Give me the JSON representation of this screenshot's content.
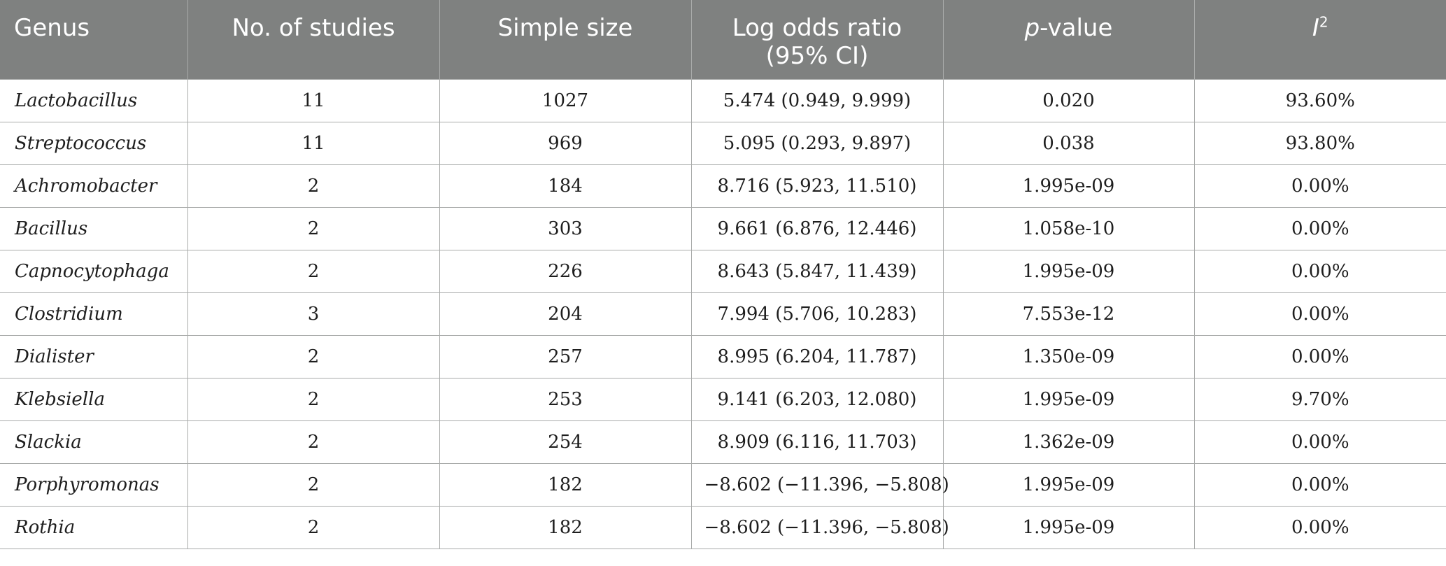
{
  "table": {
    "headers": {
      "genus": "Genus",
      "studies": "No. of studies",
      "sample_size": "Simple size",
      "log_odds_line1": "Log odds ratio",
      "log_odds_line2": "(95% CI)",
      "pvalue_p": "p",
      "pvalue_rest": "-value",
      "i2_base": "I",
      "i2_sup": "2"
    },
    "rows": [
      {
        "genus": "Lactobacillus",
        "studies": "11",
        "sample_size": "1027",
        "log_odds": "5.474 (0.949, 9.999)",
        "p_value": "0.020",
        "i2": "93.60%"
      },
      {
        "genus": "Streptococcus",
        "studies": "11",
        "sample_size": "969",
        "log_odds": "5.095 (0.293, 9.897)",
        "p_value": "0.038",
        "i2": "93.80%"
      },
      {
        "genus": "Achromobacter",
        "studies": "2",
        "sample_size": "184",
        "log_odds": "8.716 (5.923, 11.510)",
        "p_value": "1.995e-09",
        "i2": "0.00%"
      },
      {
        "genus": "Bacillus",
        "studies": "2",
        "sample_size": "303",
        "log_odds": "9.661 (6.876, 12.446)",
        "p_value": "1.058e-10",
        "i2": "0.00%"
      },
      {
        "genus": "Capnocytophaga",
        "studies": "2",
        "sample_size": "226",
        "log_odds": "8.643 (5.847, 11.439)",
        "p_value": "1.995e-09",
        "i2": "0.00%"
      },
      {
        "genus": "Clostridium",
        "studies": "3",
        "sample_size": "204",
        "log_odds": "7.994 (5.706, 10.283)",
        "p_value": "7.553e-12",
        "i2": "0.00%"
      },
      {
        "genus": "Dialister",
        "studies": "2",
        "sample_size": "257",
        "log_odds": "8.995 (6.204, 11.787)",
        "p_value": "1.350e-09",
        "i2": "0.00%"
      },
      {
        "genus": "Klebsiella",
        "studies": "2",
        "sample_size": "253",
        "log_odds": "9.141 (6.203, 12.080)",
        "p_value": "1.995e-09",
        "i2": "9.70%"
      },
      {
        "genus": "Slackia",
        "studies": "2",
        "sample_size": "254",
        "log_odds": "8.909 (6.116, 11.703)",
        "p_value": "1.362e-09",
        "i2": "0.00%"
      },
      {
        "genus": "Porphyromonas",
        "studies": "2",
        "sample_size": "182",
        "log_odds": "−8.602 (−11.396, −5.808)",
        "p_value": "1.995e-09",
        "i2": "0.00%"
      },
      {
        "genus": "Rothia",
        "studies": "2",
        "sample_size": "182",
        "log_odds": "−8.602 (−11.396, −5.808)",
        "p_value": "1.995e-09",
        "i2": "0.00%"
      }
    ]
  },
  "colors": {
    "header_bg": "#7f8180",
    "header_text": "#ffffff",
    "grid_line": "#a9abaa",
    "body_text": "#1e1e1e"
  }
}
